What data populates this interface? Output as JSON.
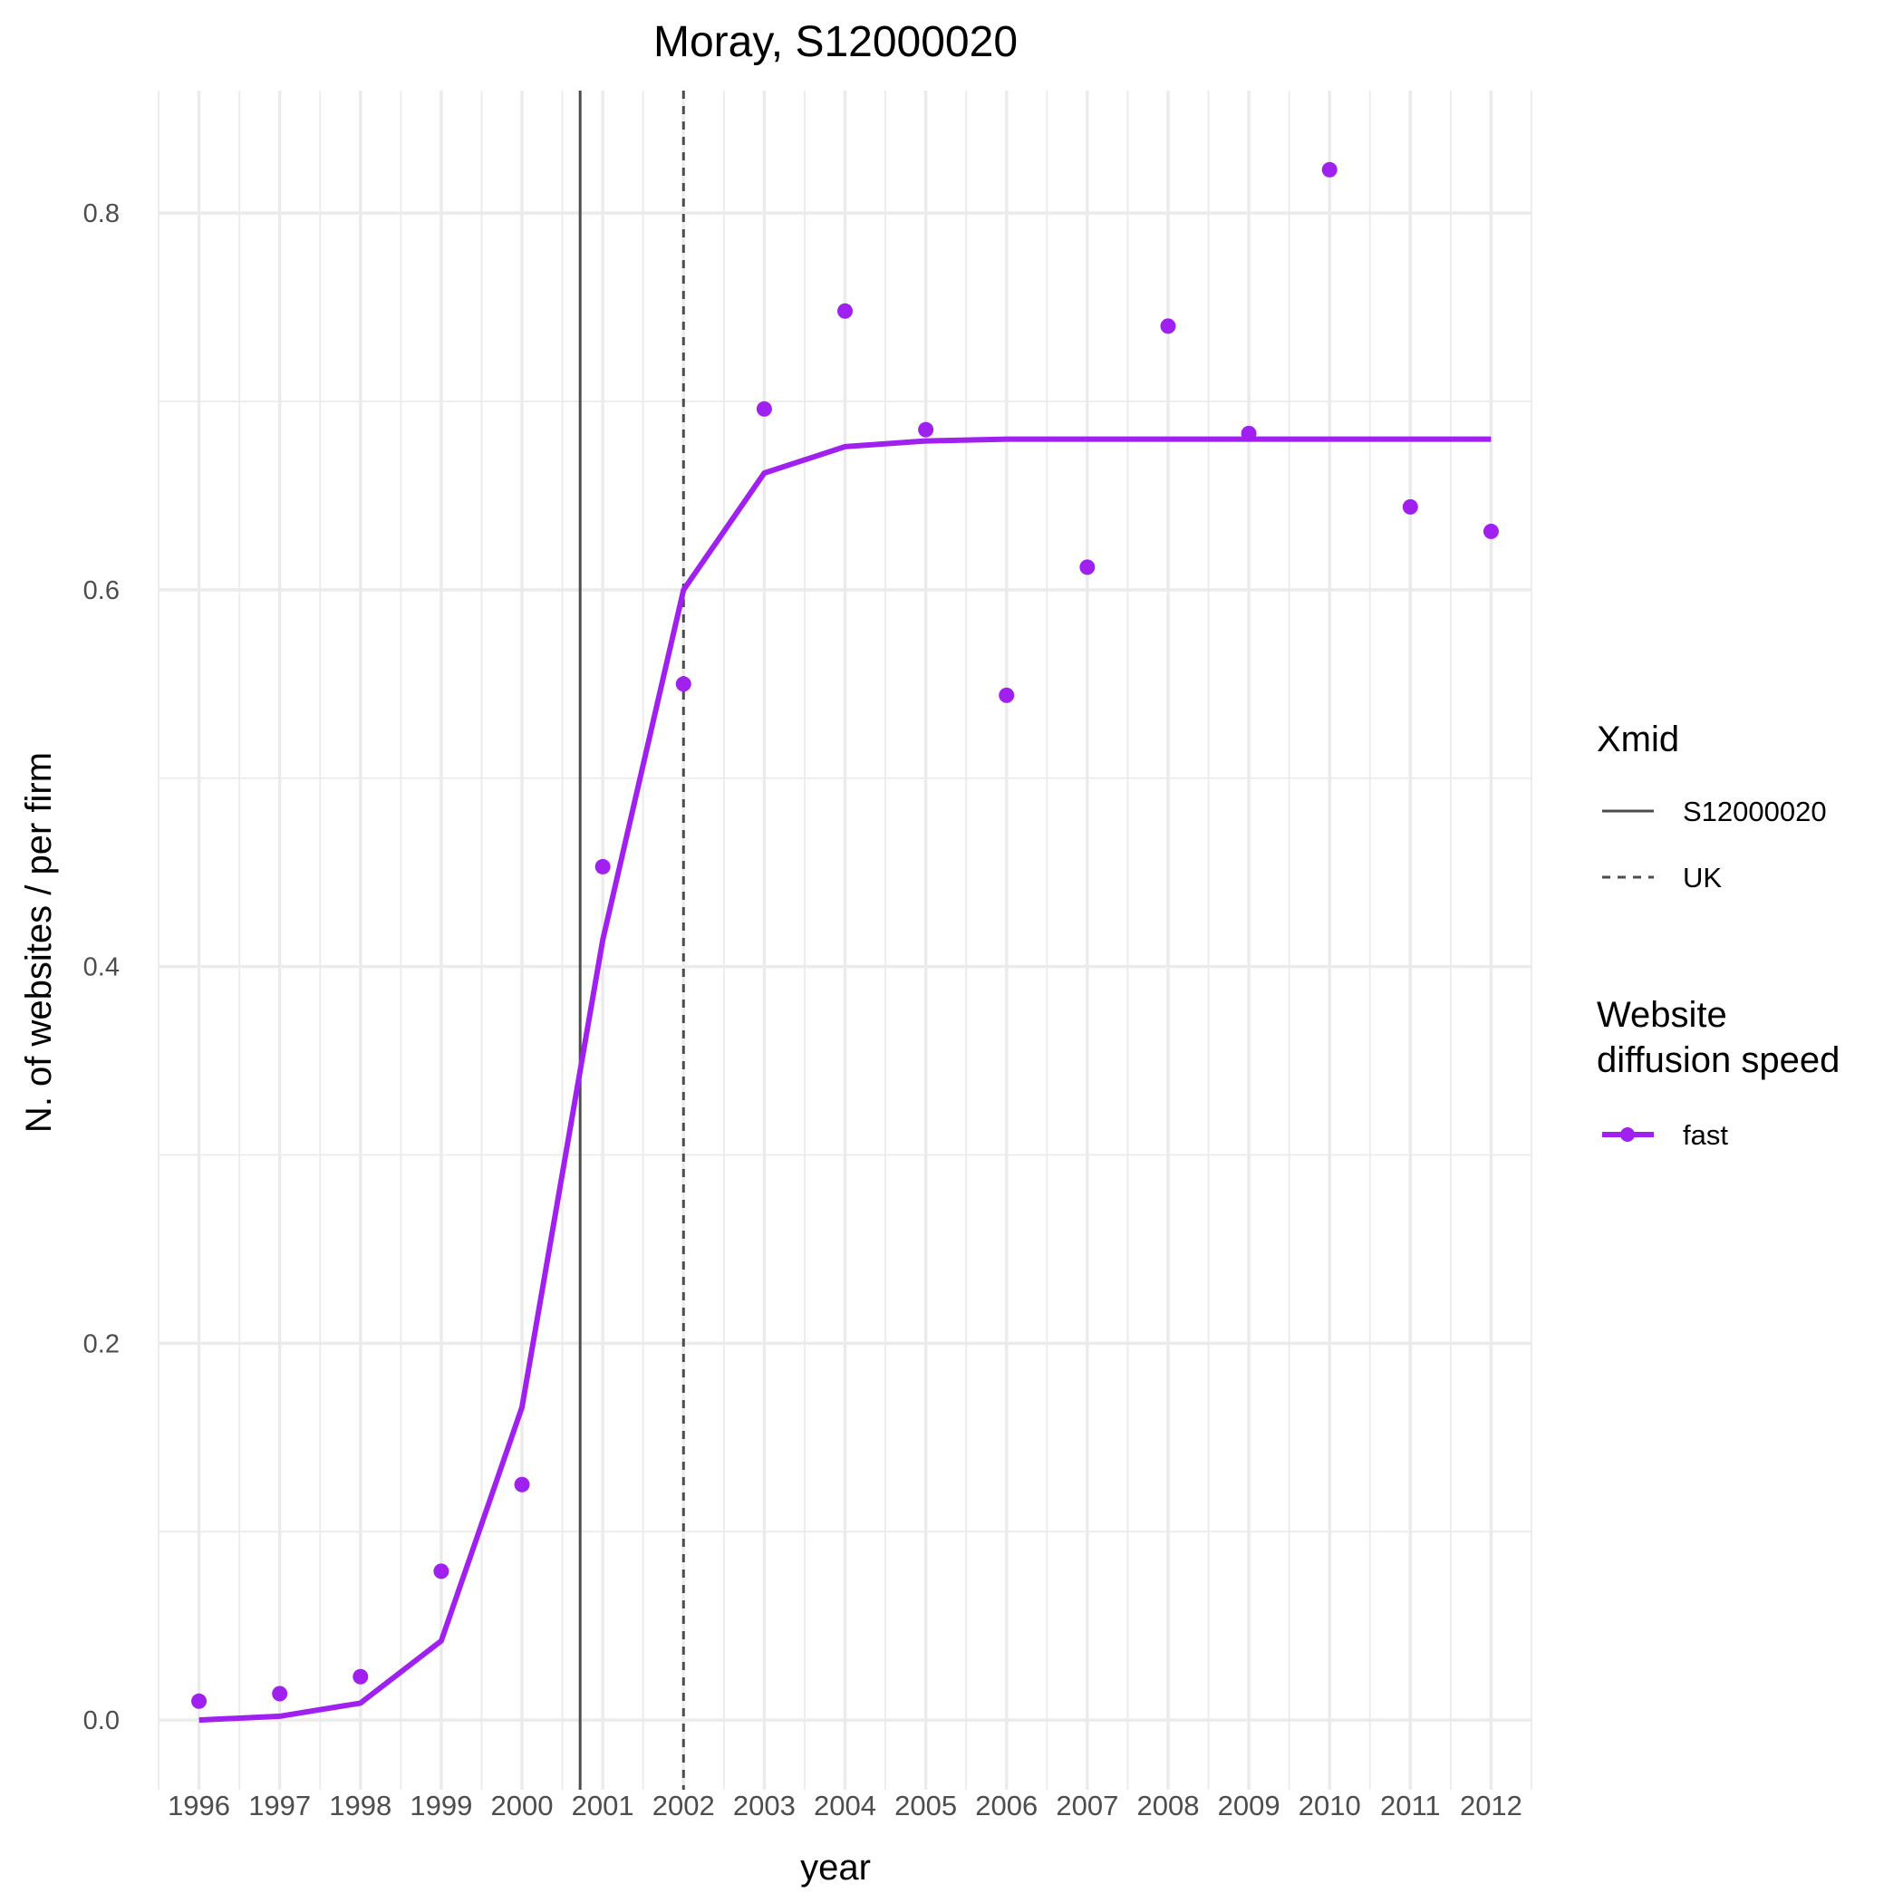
{
  "chart_data": {
    "type": "line",
    "title": "Moray, S12000020",
    "xlabel": "year",
    "ylabel": "N. of websites / per firm",
    "x": [
      1996,
      1997,
      1998,
      1999,
      2000,
      2001,
      2002,
      2003,
      2004,
      2005,
      2006,
      2007,
      2008,
      2009,
      2010,
      2011,
      2012
    ],
    "xlim": [
      1995.5,
      2012.5
    ],
    "ylim": [
      -0.037,
      0.865
    ],
    "yticks": [
      0.0,
      0.2,
      0.4,
      0.6,
      0.8
    ],
    "ytick_labels": [
      "0.0",
      "0.2",
      "0.4",
      "0.6",
      "0.8"
    ],
    "grid": true,
    "series": [
      {
        "name": "fast",
        "color": "#a020f0",
        "points": [
          0.01,
          0.014,
          0.023,
          0.079,
          0.125,
          0.453,
          0.55,
          0.696,
          0.748,
          0.685,
          0.544,
          0.612,
          0.74,
          0.683,
          0.823,
          0.644,
          0.631
        ],
        "fit": [
          0.0,
          0.002,
          0.009,
          0.042,
          0.166,
          0.414,
          0.6,
          0.662,
          0.676,
          0.679,
          0.68,
          0.68,
          0.68,
          0.68,
          0.68,
          0.68,
          0.68
        ]
      }
    ],
    "vlines": [
      {
        "label": "S12000020",
        "x": 2000.72,
        "style": "solid",
        "color": "#4d4d4d"
      },
      {
        "label": "UK",
        "x": 2002.0,
        "style": "dashed",
        "color": "#4d4d4d"
      }
    ],
    "legend": {
      "position": "right",
      "groups": [
        {
          "title": "Xmid",
          "entries": [
            "S12000020",
            "UK"
          ]
        },
        {
          "title_lines": [
            "Website",
            "diffusion speed"
          ],
          "entries": [
            "fast"
          ]
        }
      ]
    }
  }
}
